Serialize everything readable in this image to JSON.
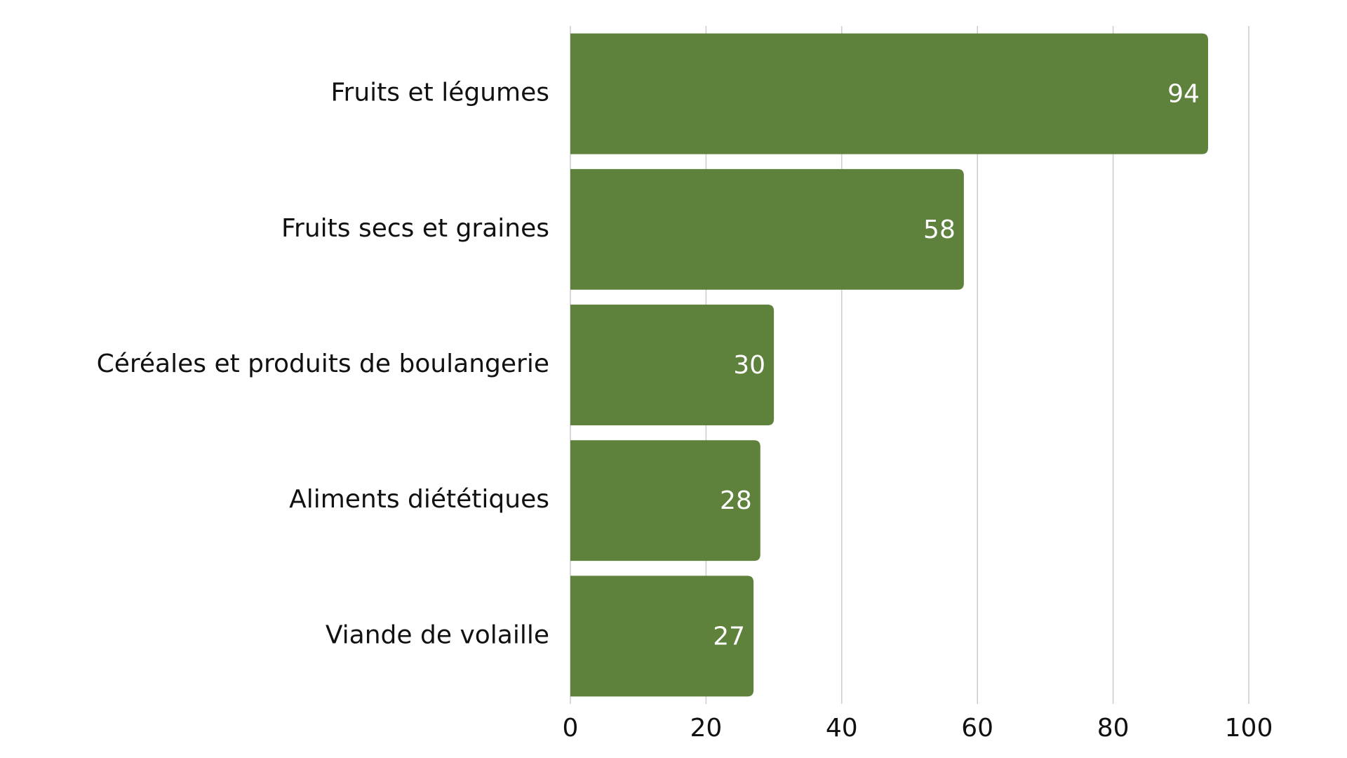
{
  "chart_data": {
    "type": "bar",
    "orientation": "horizontal",
    "categories": [
      "Fruits et légumes",
      "Fruits secs et graines",
      "Céréales et produits de boulangerie",
      "Aliments diététiques",
      "Viande de volaille"
    ],
    "values": [
      94,
      58,
      30,
      28,
      27
    ],
    "color": "#5e813b",
    "xlim": [
      0,
      100
    ],
    "xticks": [
      0,
      20,
      40,
      60,
      80,
      100
    ],
    "grid": true
  }
}
